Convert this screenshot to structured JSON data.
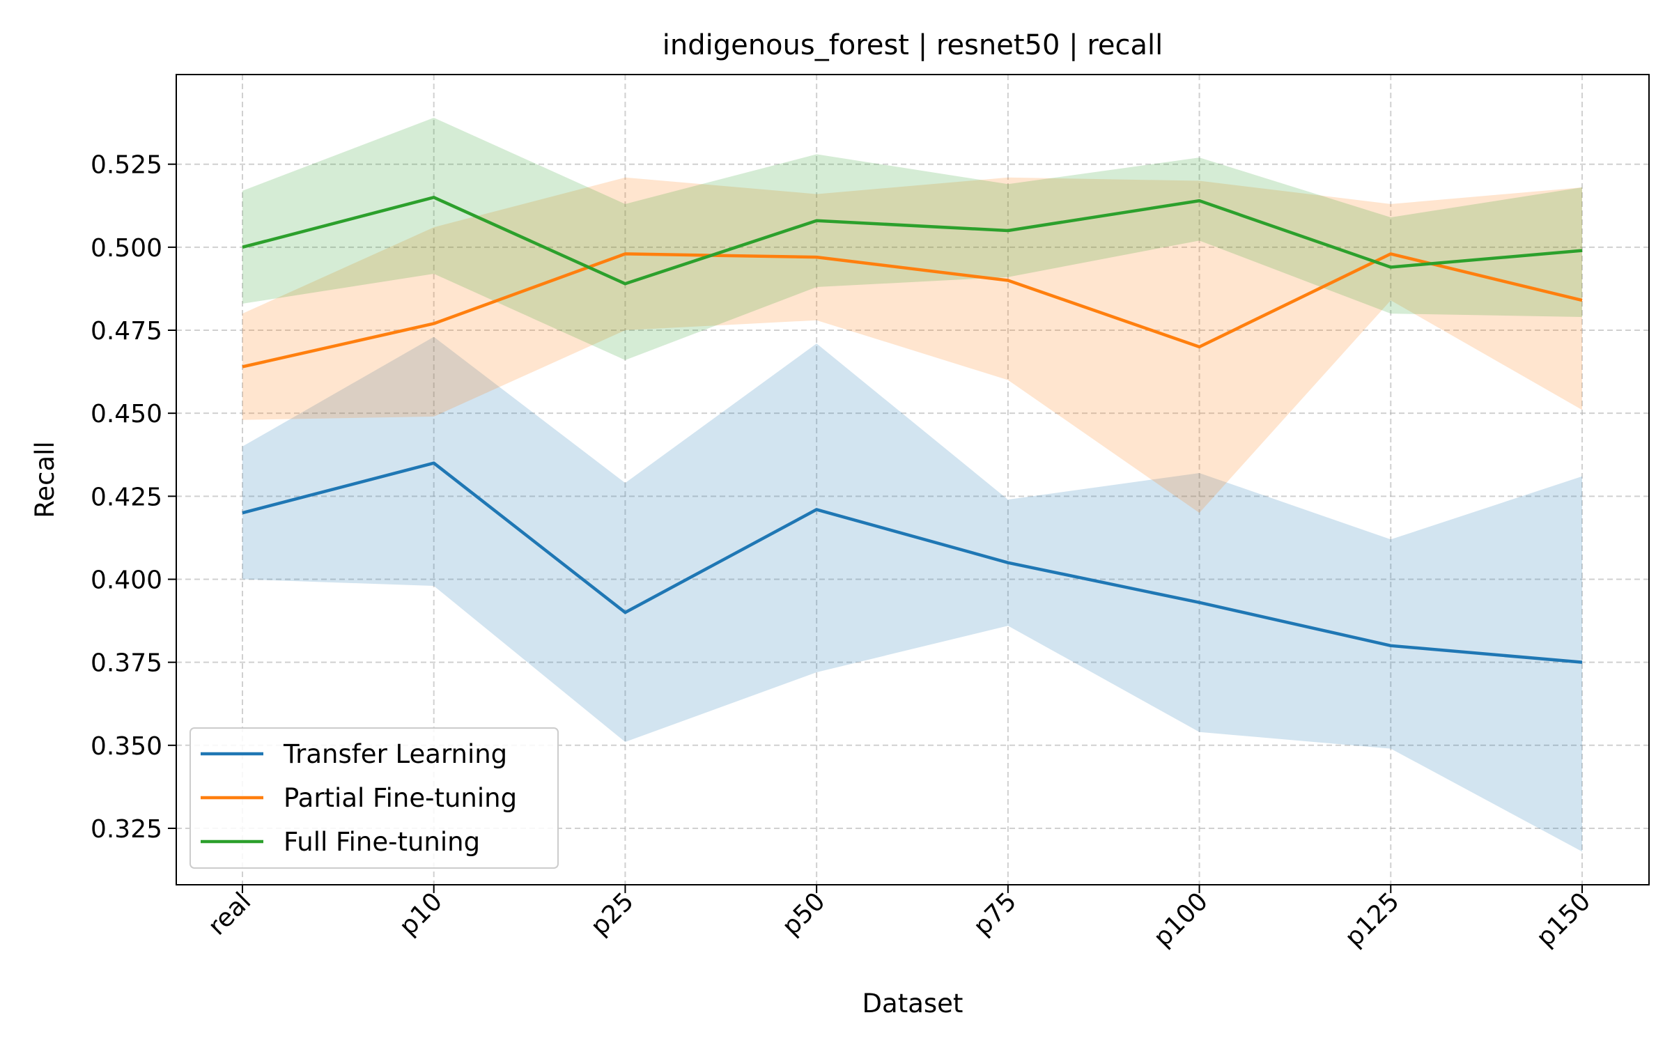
{
  "chart_data": {
    "type": "line",
    "title": "indigenous_forest | resnet50 | recall",
    "xlabel": "Dataset",
    "ylabel": "Recall",
    "categories": [
      "real",
      "p10",
      "p25",
      "p50",
      "p75",
      "p100",
      "p125",
      "p150"
    ],
    "ylim": [
      0.308,
      0.552
    ],
    "yticks": [
      0.325,
      0.35,
      0.375,
      0.4,
      0.425,
      0.45,
      0.475,
      0.5,
      0.525
    ],
    "ytick_labels": [
      "0.325",
      "0.350",
      "0.375",
      "0.400",
      "0.425",
      "0.450",
      "0.475",
      "0.500",
      "0.525"
    ],
    "grid": true,
    "legend_position": "lower-left",
    "series": [
      {
        "name": "Transfer Learning",
        "color": "#1f77b4",
        "values": [
          0.42,
          0.435,
          0.39,
          0.421,
          0.405,
          0.393,
          0.38,
          0.375
        ],
        "lower": [
          0.4,
          0.398,
          0.351,
          0.372,
          0.386,
          0.354,
          0.349,
          0.318
        ],
        "upper": [
          0.44,
          0.473,
          0.429,
          0.471,
          0.424,
          0.432,
          0.412,
          0.431
        ]
      },
      {
        "name": "Partial Fine-tuning",
        "color": "#ff7f0e",
        "values": [
          0.464,
          0.477,
          0.498,
          0.497,
          0.49,
          0.47,
          0.498,
          0.484
        ],
        "lower": [
          0.448,
          0.449,
          0.475,
          0.478,
          0.46,
          0.42,
          0.484,
          0.451
        ],
        "upper": [
          0.48,
          0.506,
          0.521,
          0.516,
          0.521,
          0.52,
          0.513,
          0.518
        ]
      },
      {
        "name": "Full Fine-tuning",
        "color": "#2ca02c",
        "values": [
          0.5,
          0.515,
          0.489,
          0.508,
          0.505,
          0.514,
          0.494,
          0.499
        ],
        "lower": [
          0.483,
          0.492,
          0.466,
          0.488,
          0.491,
          0.502,
          0.48,
          0.479
        ],
        "upper": [
          0.517,
          0.539,
          0.513,
          0.528,
          0.519,
          0.527,
          0.509,
          0.518
        ]
      }
    ]
  }
}
